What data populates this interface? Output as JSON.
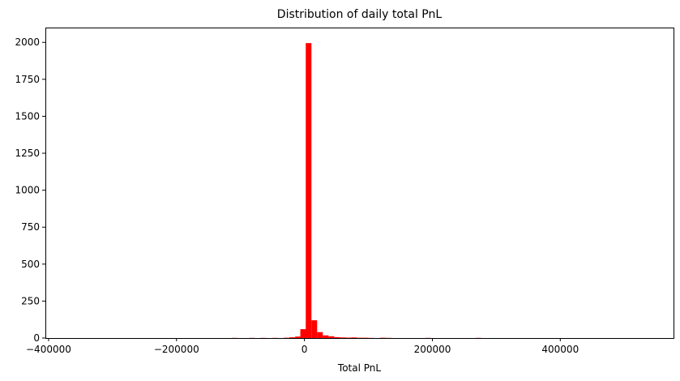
{
  "chart_data": {
    "type": "bar",
    "title": "Distribution of daily total PnL",
    "xlabel": "Total PnL",
    "ylabel": "",
    "xlim": [
      -405000,
      577000
    ],
    "ylim": [
      0,
      2100
    ],
    "xticks": [
      -400000,
      -200000,
      0,
      200000,
      400000
    ],
    "xtick_labels": [
      "−400000",
      "−200000",
      "0",
      "200000",
      "400000"
    ],
    "yticks": [
      0,
      250,
      500,
      750,
      1000,
      1250,
      1500,
      1750,
      2000
    ],
    "ytick_labels": [
      "0",
      "250",
      "500",
      "750",
      "1000",
      "1250",
      "1500",
      "1750",
      "2000"
    ],
    "grid": false,
    "legend": "none",
    "bar_color": "#ff0000",
    "bin_width": 8900,
    "bins": [
      {
        "x": -109000,
        "count": 1
      },
      {
        "x": -82000,
        "count": 1
      },
      {
        "x": -64000,
        "count": 1
      },
      {
        "x": -46000,
        "count": 1
      },
      {
        "x": -28000,
        "count": 2
      },
      {
        "x": -19000,
        "count": 5
      },
      {
        "x": -10000,
        "count": 10
      },
      {
        "x": -2000,
        "count": 60
      },
      {
        "x": 6500,
        "count": 1995
      },
      {
        "x": 15400,
        "count": 120
      },
      {
        "x": 24300,
        "count": 40
      },
      {
        "x": 33200,
        "count": 18
      },
      {
        "x": 42100,
        "count": 12
      },
      {
        "x": 51000,
        "count": 6
      },
      {
        "x": 60000,
        "count": 4
      },
      {
        "x": 68500,
        "count": 3
      },
      {
        "x": 77500,
        "count": 4
      },
      {
        "x": 86500,
        "count": 2
      },
      {
        "x": 95500,
        "count": 2
      },
      {
        "x": 104500,
        "count": 1
      },
      {
        "x": 122500,
        "count": 2
      },
      {
        "x": 131500,
        "count": 1
      },
      {
        "x": 193000,
        "count": 1
      },
      {
        "x": 272000,
        "count": 1
      }
    ]
  }
}
